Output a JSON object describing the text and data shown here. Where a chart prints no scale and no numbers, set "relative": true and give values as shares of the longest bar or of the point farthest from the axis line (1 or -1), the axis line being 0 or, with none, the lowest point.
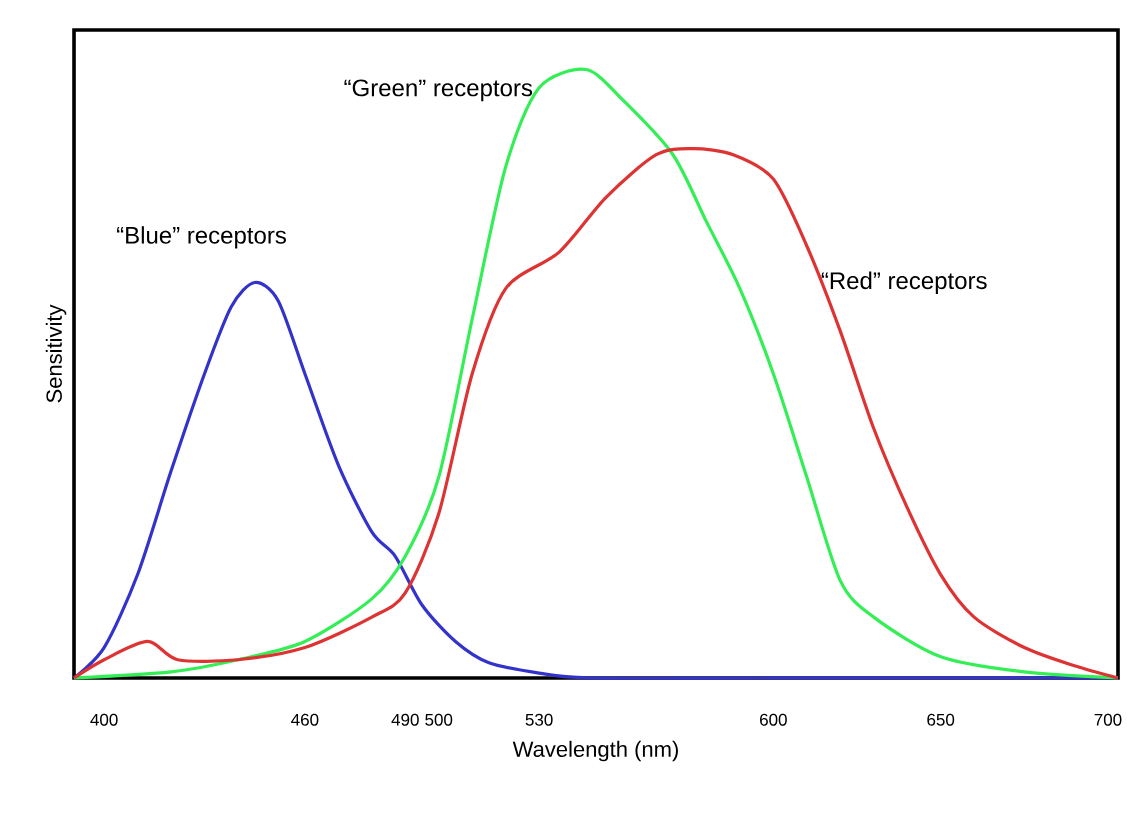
{
  "chart_data": {
    "type": "line",
    "xlabel": "Wavelength (nm)",
    "ylabel": "Sensitivity",
    "relative": true,
    "xlim": [
      391,
      703
    ],
    "xticks": [
      400,
      460,
      490,
      500,
      530,
      600,
      650,
      700
    ],
    "marker": "none",
    "line_style": "solid",
    "series": [
      {
        "name": "“Blue” receptors",
        "color": "#3333cc",
        "x": [
          391,
          400,
          410,
          420,
          430,
          438,
          445,
          452,
          460,
          470,
          480,
          487,
          495,
          505,
          515,
          530,
          545,
          600,
          703
        ],
        "values": [
          0,
          0.05,
          0.17,
          0.34,
          0.5,
          0.61,
          0.65,
          0.62,
          0.5,
          0.35,
          0.24,
          0.2,
          0.12,
          0.06,
          0.025,
          0.008,
          0,
          0,
          0
        ]
      },
      {
        "name": "“Green” receptors",
        "color": "#33ee55",
        "x": [
          391,
          420,
          440,
          460,
          480,
          490,
          500,
          510,
          520,
          530,
          544,
          555,
          570,
          580,
          590,
          600,
          610,
          620,
          630,
          650,
          675,
          703
        ],
        "values": [
          0,
          0.01,
          0.03,
          0.06,
          0.13,
          0.2,
          0.33,
          0.59,
          0.84,
          0.97,
          1,
          0.95,
          0.86,
          0.75,
          0.64,
          0.5,
          0.33,
          0.16,
          0.1,
          0.035,
          0.01,
          0
        ]
      },
      {
        "name": "“Red” receptors",
        "color": "#dd3333",
        "x": [
          391,
          400,
          413,
          422,
          440,
          460,
          480,
          490,
          500,
          510,
          520,
          536,
          550,
          565,
          576,
          588,
          600,
          610,
          620,
          630,
          640,
          650,
          660,
          675,
          690,
          703
        ],
        "values": [
          0,
          0.03,
          0.06,
          0.03,
          0.03,
          0.05,
          0.1,
          0.14,
          0.27,
          0.5,
          0.64,
          0.7,
          0.79,
          0.86,
          0.87,
          0.86,
          0.82,
          0.71,
          0.57,
          0.41,
          0.28,
          0.17,
          0.1,
          0.05,
          0.02,
          0
        ]
      }
    ]
  }
}
